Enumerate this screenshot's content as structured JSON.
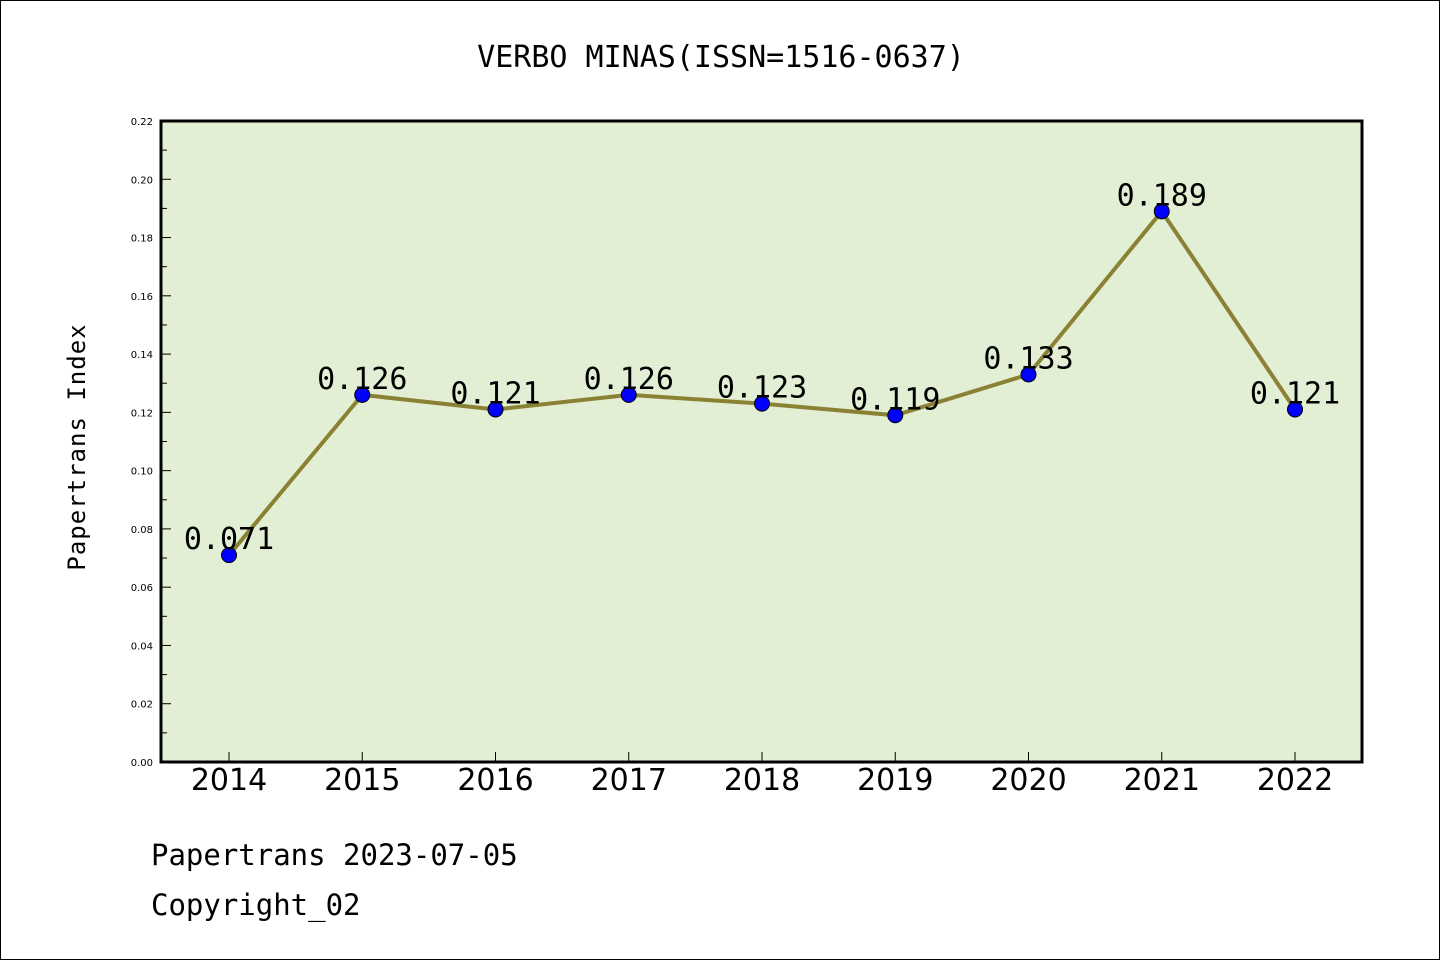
{
  "chart_data": {
    "type": "line",
    "title": "VERBO MINAS(ISSN=1516-0637)",
    "xlabel": "",
    "ylabel": "Papertrans Index",
    "categories": [
      "2014",
      "2015",
      "2016",
      "2017",
      "2018",
      "2019",
      "2020",
      "2021",
      "2022"
    ],
    "series": [
      {
        "values": [
          0.071,
          0.126,
          0.121,
          0.126,
          0.123,
          0.119,
          0.133,
          0.189,
          0.121
        ],
        "data_labels": [
          "0.071",
          "0.126",
          "0.121",
          "0.126",
          "0.123",
          "0.119",
          "0.133",
          "0.189",
          "0.121"
        ]
      }
    ],
    "ylim": [
      0,
      0.22
    ],
    "yticks": [
      "0.00",
      "0.02",
      "0.04",
      "0.06",
      "0.08",
      "0.10",
      "0.12",
      "0.14",
      "0.16",
      "0.18",
      "0.20",
      "0.22"
    ],
    "grid": false,
    "legend": "none",
    "colors": {
      "plot_background": "#e2efd4",
      "line": "#8b8134",
      "marker": "#0000ff",
      "axes": "#000000"
    }
  },
  "footer": {
    "line1": "Papertrans 2023-07-05",
    "line2": "Copyright_02"
  }
}
